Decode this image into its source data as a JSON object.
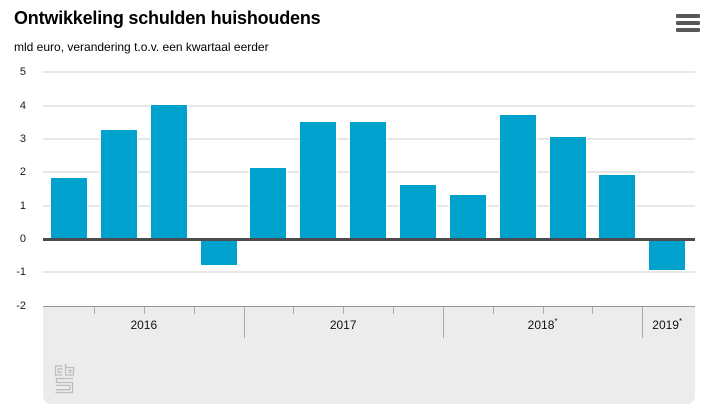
{
  "header": {
    "title": "Ontwikkeling schulden huishoudens",
    "subtitle": "mld euro, verandering t.o.v. een kwartaal eerder",
    "menu_icon": "hamburger-menu-icon"
  },
  "chart_data": {
    "type": "bar",
    "title": "Ontwikkeling schulden huishoudens",
    "subtitle": "mld euro, verandering t.o.v. een kwartaal eerder",
    "ylabel": "mld euro",
    "xlabel": "",
    "categories": [
      "2016",
      "2016",
      "2016",
      "2016",
      "2017",
      "2017",
      "2017",
      "2017",
      "2018*",
      "2018*",
      "2018*",
      "2018*",
      "2019*"
    ],
    "values": [
      1.85,
      3.3,
      4.05,
      -0.8,
      2.15,
      3.55,
      3.55,
      1.65,
      1.35,
      3.75,
      3.1,
      1.95,
      -0.95
    ],
    "groups": [
      {
        "label": "2016",
        "count": 4
      },
      {
        "label": "2017",
        "count": 4
      },
      {
        "label": "2018*",
        "count": 4
      },
      {
        "label": "2019*",
        "count": 1
      }
    ],
    "ylim": [
      -2,
      5
    ],
    "yticks": [
      5,
      4,
      3,
      2,
      1,
      0,
      -1,
      -2
    ],
    "grid": true,
    "legend_position": "none",
    "bar_color": "#00a1cd",
    "zero_line_color": "#4b4b4d",
    "grid_color": "#e7e7e7",
    "band_color": "#ececec"
  },
  "footer": {
    "logo": "cbs-logo"
  }
}
